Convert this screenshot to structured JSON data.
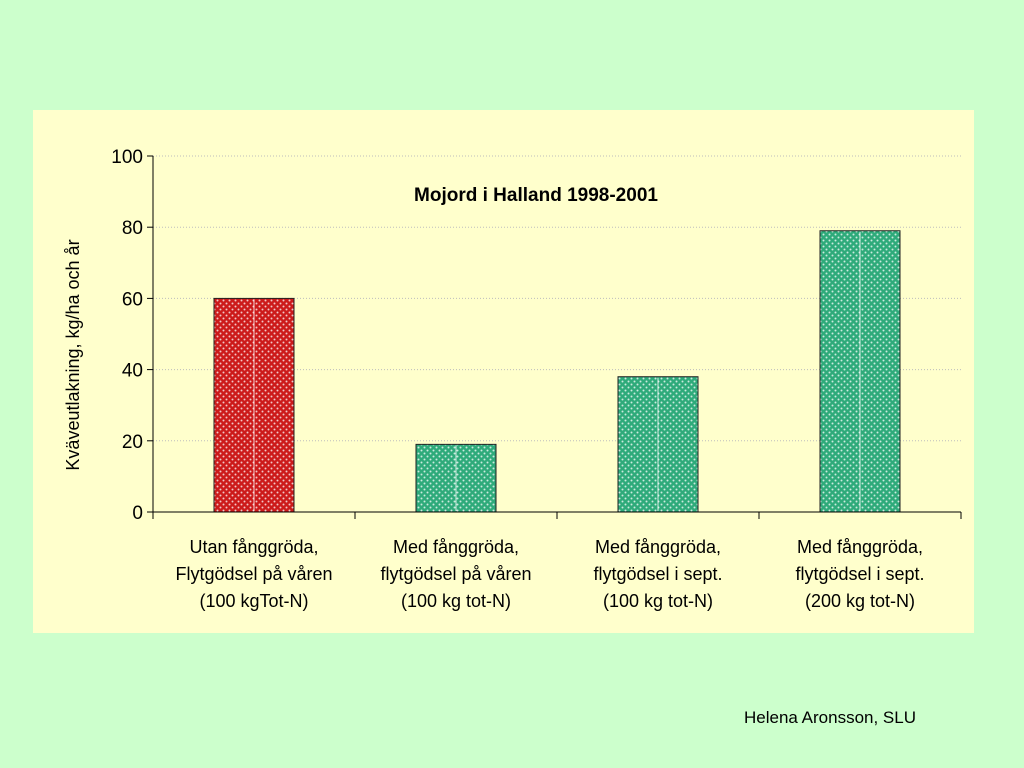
{
  "chart_data": {
    "type": "bar",
    "title": "Mojord i Halland 1998-2001",
    "ylabel": "Kväveutlakning, kg/ha och år",
    "xlabel": "",
    "ylim": [
      0,
      100
    ],
    "yticks": [
      0,
      20,
      40,
      60,
      80,
      100
    ],
    "grid": true,
    "categories": [
      [
        "Utan fånggröda,",
        "Flytgödsel på våren",
        "(100 kgTot-N)"
      ],
      [
        "Med fånggröda,",
        "flytgödsel på våren",
        "(100 kg tot-N)"
      ],
      [
        "Med fånggröda,",
        "flytgödsel i sept.",
        "(100 kg tot-N)"
      ],
      [
        "Med fånggröda,",
        "flytgödsel i sept.",
        "(200 kg tot-N)"
      ]
    ],
    "values": [
      60,
      19,
      38,
      79
    ],
    "bar_colors": [
      "#cc1a1a",
      "#2eaa7a",
      "#2eaa7a",
      "#2eaa7a"
    ]
  },
  "credit": "Helena Aronsson, SLU"
}
